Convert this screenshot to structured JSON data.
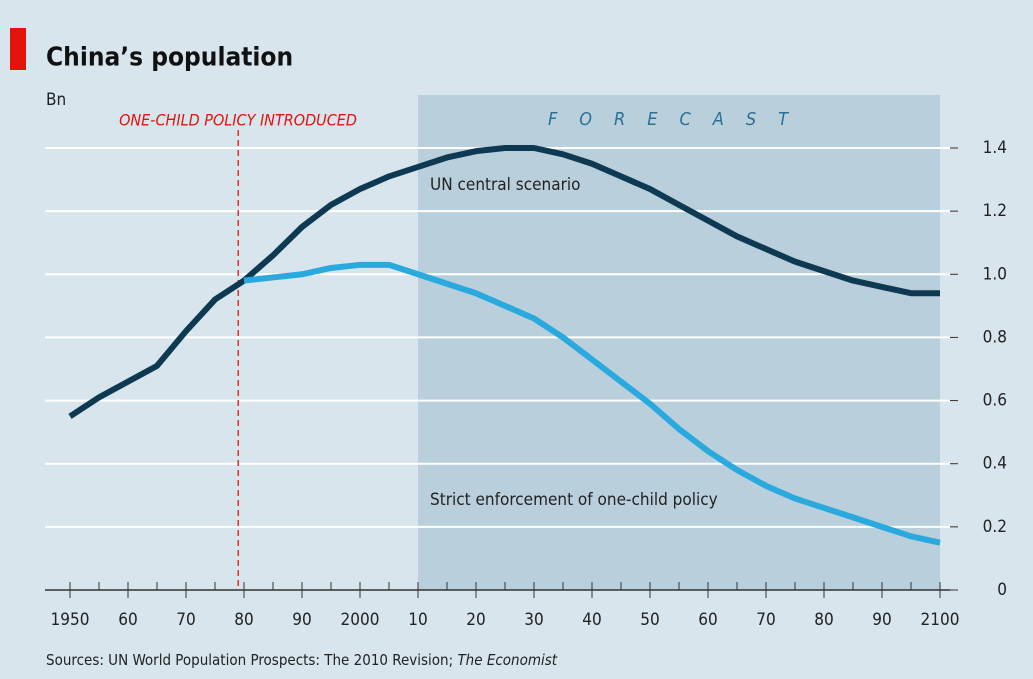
{
  "chart_data": {
    "type": "line",
    "title": "China’s population",
    "y_unit": "Bn",
    "annotation_policy": "ONE-CHILD POLICY INTRODUCED",
    "policy_year": 1979,
    "forecast_label": "FORECAST",
    "forecast_start": 2010,
    "source": "Sources: UN World Population Prospects: The 2010 Revision; ",
    "source_italic": "The Economist",
    "x": [
      1950,
      1955,
      1960,
      1965,
      1970,
      1975,
      1980,
      1985,
      1990,
      1995,
      2000,
      2005,
      2010,
      2015,
      2020,
      2025,
      2030,
      2035,
      2040,
      2045,
      2050,
      2055,
      2060,
      2065,
      2070,
      2075,
      2080,
      2085,
      2090,
      2095,
      2100
    ],
    "series": [
      {
        "name": "UN central scenario",
        "color": "#0d3a52",
        "values": [
          0.55,
          0.61,
          0.66,
          0.71,
          0.82,
          0.92,
          0.98,
          1.06,
          1.15,
          1.22,
          1.27,
          1.31,
          1.34,
          1.37,
          1.39,
          1.4,
          1.4,
          1.38,
          1.35,
          1.31,
          1.27,
          1.22,
          1.17,
          1.12,
          1.08,
          1.04,
          1.01,
          0.98,
          0.96,
          0.94,
          0.94
        ]
      },
      {
        "name": "Strict enforcement of one-child policy",
        "color": "#2aa9df",
        "values": [
          null,
          null,
          null,
          null,
          null,
          null,
          0.98,
          0.99,
          1.0,
          1.02,
          1.03,
          1.03,
          1.0,
          0.97,
          0.94,
          0.9,
          0.86,
          0.8,
          0.73,
          0.66,
          0.59,
          0.51,
          0.44,
          0.38,
          0.33,
          0.29,
          0.26,
          0.23,
          0.2,
          0.17,
          0.15
        ]
      }
    ],
    "xlim": [
      1950,
      2100
    ],
    "xticks": [
      1950,
      {
        "value": 1960,
        "label": "60"
      },
      {
        "value": 1970,
        "label": "70"
      },
      {
        "value": 1980,
        "label": "80"
      },
      {
        "value": 1990,
        "label": "90"
      },
      2000,
      {
        "value": 2010,
        "label": "10"
      },
      {
        "value": 2020,
        "label": "20"
      },
      {
        "value": 2030,
        "label": "30"
      },
      {
        "value": 2040,
        "label": "40"
      },
      {
        "value": 2050,
        "label": "50"
      },
      {
        "value": 2060,
        "label": "60"
      },
      {
        "value": 2070,
        "label": "70"
      },
      {
        "value": 2080,
        "label": "80"
      },
      {
        "value": 2090,
        "label": "90"
      },
      2100
    ],
    "xminorticks": [
      1955,
      1965,
      1975,
      1985,
      1995,
      2005,
      2015,
      2025,
      2035,
      2045,
      2055,
      2065,
      2075,
      2085,
      2095
    ],
    "ylim": [
      0,
      1.4
    ],
    "yticks": [
      0,
      0.2,
      0.4,
      0.6,
      0.8,
      {
        "value": 1,
        "label": "1.0"
      },
      1.2,
      1.4
    ],
    "grid": true
  }
}
